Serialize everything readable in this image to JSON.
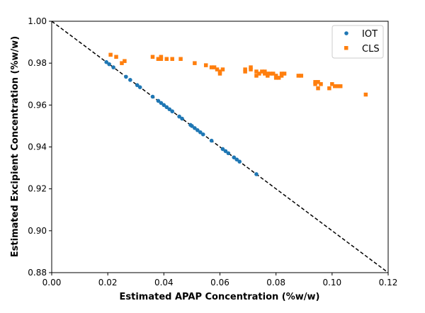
{
  "chart_data": {
    "type": "scatter",
    "xlabel": "Estimated APAP Concentration (%w/w)",
    "ylabel": "Estimated Excipient Concentration (%w/w)",
    "xlim": [
      0.0,
      0.12
    ],
    "ylim": [
      0.88,
      1.0
    ],
    "x_ticks": [
      0.0,
      0.02,
      0.04,
      0.06,
      0.08,
      0.1,
      0.12
    ],
    "x_tick_labels": [
      "0.00",
      "0.02",
      "0.04",
      "0.06",
      "0.08",
      "0.10",
      "0.12"
    ],
    "y_ticks": [
      0.88,
      0.9,
      0.92,
      0.94,
      0.96,
      0.98,
      1.0
    ],
    "y_tick_labels": [
      "0.88",
      "0.90",
      "0.92",
      "0.94",
      "0.96",
      "0.98",
      "1.00"
    ],
    "grid": false,
    "legend_position": "top-right",
    "reference_line": {
      "style": "dashed",
      "color": "#000000",
      "points": [
        [
          0.0,
          1.0
        ],
        [
          0.12,
          0.88
        ]
      ]
    },
    "series": [
      {
        "name": "IOT",
        "marker": "circle",
        "color": "#1f77b4",
        "points": [
          [
            0.0195,
            0.9805
          ],
          [
            0.0205,
            0.9795
          ],
          [
            0.022,
            0.978
          ],
          [
            0.0265,
            0.9735
          ],
          [
            0.028,
            0.972
          ],
          [
            0.0305,
            0.9695
          ],
          [
            0.0315,
            0.9685
          ],
          [
            0.036,
            0.964
          ],
          [
            0.038,
            0.962
          ],
          [
            0.039,
            0.961
          ],
          [
            0.04,
            0.96
          ],
          [
            0.041,
            0.959
          ],
          [
            0.042,
            0.958
          ],
          [
            0.043,
            0.957
          ],
          [
            0.0455,
            0.9545
          ],
          [
            0.0465,
            0.9535
          ],
          [
            0.0495,
            0.9505
          ],
          [
            0.05,
            0.95
          ],
          [
            0.051,
            0.949
          ],
          [
            0.052,
            0.948
          ],
          [
            0.053,
            0.947
          ],
          [
            0.054,
            0.946
          ],
          [
            0.057,
            0.943
          ],
          [
            0.061,
            0.939
          ],
          [
            0.062,
            0.938
          ],
          [
            0.063,
            0.937
          ],
          [
            0.065,
            0.935
          ],
          [
            0.066,
            0.934
          ],
          [
            0.067,
            0.933
          ],
          [
            0.073,
            0.927
          ]
        ]
      },
      {
        "name": "CLS",
        "marker": "square",
        "color": "#ff7f0e",
        "points": [
          [
            0.021,
            0.984
          ],
          [
            0.023,
            0.983
          ],
          [
            0.025,
            0.98
          ],
          [
            0.026,
            0.981
          ],
          [
            0.036,
            0.983
          ],
          [
            0.038,
            0.982
          ],
          [
            0.039,
            0.983
          ],
          [
            0.039,
            0.982
          ],
          [
            0.041,
            0.982
          ],
          [
            0.043,
            0.982
          ],
          [
            0.046,
            0.982
          ],
          [
            0.051,
            0.98
          ],
          [
            0.055,
            0.979
          ],
          [
            0.057,
            0.978
          ],
          [
            0.058,
            0.978
          ],
          [
            0.059,
            0.977
          ],
          [
            0.06,
            0.975
          ],
          [
            0.06,
            0.976
          ],
          [
            0.061,
            0.977
          ],
          [
            0.069,
            0.976
          ],
          [
            0.069,
            0.977
          ],
          [
            0.071,
            0.978
          ],
          [
            0.071,
            0.977
          ],
          [
            0.073,
            0.974
          ],
          [
            0.073,
            0.976
          ],
          [
            0.074,
            0.975
          ],
          [
            0.075,
            0.976
          ],
          [
            0.076,
            0.975
          ],
          [
            0.076,
            0.976
          ],
          [
            0.077,
            0.974
          ],
          [
            0.077,
            0.975
          ],
          [
            0.078,
            0.975
          ],
          [
            0.079,
            0.975
          ],
          [
            0.08,
            0.973
          ],
          [
            0.08,
            0.974
          ],
          [
            0.081,
            0.973
          ],
          [
            0.082,
            0.975
          ],
          [
            0.082,
            0.974
          ],
          [
            0.083,
            0.975
          ],
          [
            0.088,
            0.974
          ],
          [
            0.089,
            0.974
          ],
          [
            0.094,
            0.971
          ],
          [
            0.094,
            0.97
          ],
          [
            0.095,
            0.968
          ],
          [
            0.095,
            0.971
          ],
          [
            0.096,
            0.97
          ],
          [
            0.099,
            0.968
          ],
          [
            0.1,
            0.97
          ],
          [
            0.101,
            0.969
          ],
          [
            0.102,
            0.969
          ],
          [
            0.103,
            0.969
          ],
          [
            0.112,
            0.965
          ]
        ]
      }
    ]
  }
}
